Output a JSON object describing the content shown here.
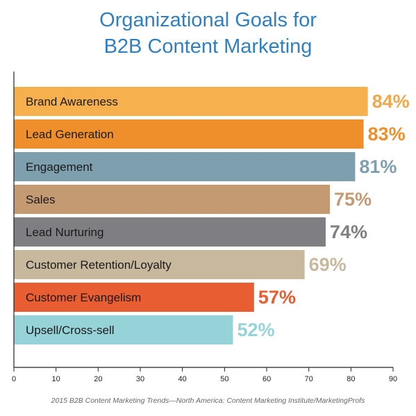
{
  "title_line1": "Organizational Goals for",
  "title_line2": "B2B Content Marketing",
  "source": "2015 B2B Content Marketing Trends—North America: Content Marketing Institute/MarketingProfs",
  "chart_data": {
    "type": "bar",
    "orientation": "horizontal",
    "title": "Organizational Goals for B2B Content Marketing",
    "categories": [
      "Brand Awareness",
      "Lead Generation",
      "Engagement",
      "Sales",
      "Lead Nurturing",
      "Customer Retention/Loyalty",
      "Customer Evangelism",
      "Upsell/Cross-sell"
    ],
    "values": [
      84,
      83,
      81,
      75,
      74,
      69,
      57,
      52
    ],
    "value_labels": [
      "84%",
      "83%",
      "81%",
      "75%",
      "74%",
      "69%",
      "57%",
      "52%"
    ],
    "colors": [
      "#f6b04d",
      "#ef8f2c",
      "#7d9fae",
      "#c49a73",
      "#7f7f83",
      "#c8b99e",
      "#e95d32",
      "#96d3d9"
    ],
    "label_colors": [
      "#f0a84a",
      "#ef8f2c",
      "#7d9fae",
      "#c49a73",
      "#7f7f83",
      "#c8b99e",
      "#e95d32",
      "#96d3d9"
    ],
    "xlim": [
      0,
      90
    ],
    "xticks": [
      0,
      10,
      20,
      30,
      40,
      50,
      60,
      70,
      80,
      90
    ],
    "grid": false,
    "legend": "none"
  }
}
